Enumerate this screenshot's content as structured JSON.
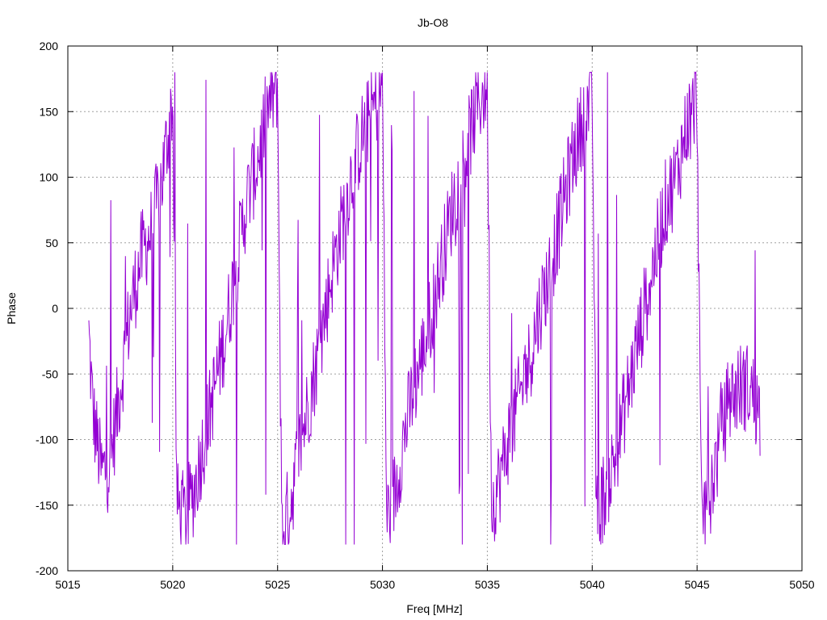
{
  "chart_data": {
    "type": "line",
    "title": "Jb-O8",
    "xlabel": "Freq [MHz]",
    "ylabel": "Phase",
    "xlim": [
      5015,
      5050
    ],
    "ylim": [
      -200,
      200
    ],
    "xticks": [
      5015,
      5020,
      5025,
      5030,
      5035,
      5040,
      5045,
      5050
    ],
    "yticks": [
      -200,
      -150,
      -100,
      -50,
      0,
      50,
      100,
      150,
      200
    ],
    "grid": true,
    "x_start": 5016.0,
    "x_end": 5048.0,
    "series": [
      {
        "color": "#9400d3",
        "trend": [
          [
            5016.0,
            -20
          ],
          [
            5016.2,
            -80
          ],
          [
            5016.6,
            -125
          ],
          [
            5017.0,
            -120
          ],
          [
            5017.5,
            -60
          ],
          [
            5018.0,
            0
          ],
          [
            5018.5,
            40
          ],
          [
            5019.0,
            60
          ],
          [
            5019.5,
            100
          ],
          [
            5020.0,
            160
          ],
          [
            5020.2,
            -150
          ],
          [
            5020.6,
            -160
          ],
          [
            5021.0,
            -140
          ],
          [
            5021.5,
            -100
          ],
          [
            5022.0,
            -60
          ],
          [
            5022.5,
            -20
          ],
          [
            5023.0,
            30
          ],
          [
            5023.5,
            80
          ],
          [
            5024.0,
            110
          ],
          [
            5024.5,
            150
          ],
          [
            5025.0,
            170
          ],
          [
            5025.2,
            -170
          ],
          [
            5025.6,
            -150
          ],
          [
            5026.0,
            -110
          ],
          [
            5026.5,
            -70
          ],
          [
            5027.0,
            -30
          ],
          [
            5027.5,
            20
          ],
          [
            5028.0,
            60
          ],
          [
            5028.5,
            100
          ],
          [
            5029.0,
            130
          ],
          [
            5029.5,
            150
          ],
          [
            5030.0,
            170
          ],
          [
            5030.2,
            -160
          ],
          [
            5030.6,
            -140
          ],
          [
            5031.0,
            -100
          ],
          [
            5031.5,
            -60
          ],
          [
            5032.0,
            -30
          ],
          [
            5032.5,
            10
          ],
          [
            5033.0,
            50
          ],
          [
            5033.5,
            90
          ],
          [
            5034.0,
            120
          ],
          [
            5034.5,
            155
          ],
          [
            5035.0,
            170
          ],
          [
            5035.2,
            -150
          ],
          [
            5035.6,
            -130
          ],
          [
            5036.0,
            -100
          ],
          [
            5036.5,
            -70
          ],
          [
            5037.0,
            -40
          ],
          [
            5037.5,
            0
          ],
          [
            5038.0,
            30
          ],
          [
            5038.5,
            70
          ],
          [
            5039.0,
            110
          ],
          [
            5039.5,
            140
          ],
          [
            5040.0,
            165
          ],
          [
            5040.2,
            -160
          ],
          [
            5040.6,
            -140
          ],
          [
            5041.0,
            -120
          ],
          [
            5041.5,
            -80
          ],
          [
            5042.0,
            -40
          ],
          [
            5042.5,
            0
          ],
          [
            5043.0,
            40
          ],
          [
            5043.5,
            80
          ],
          [
            5044.0,
            100
          ],
          [
            5044.5,
            140
          ],
          [
            5045.0,
            160
          ],
          [
            5045.2,
            -160
          ],
          [
            5045.6,
            -140
          ],
          [
            5046.0,
            -110
          ],
          [
            5046.5,
            -70
          ],
          [
            5047.0,
            -60
          ],
          [
            5047.5,
            -60
          ],
          [
            5048.0,
            -80
          ]
        ]
      }
    ]
  }
}
